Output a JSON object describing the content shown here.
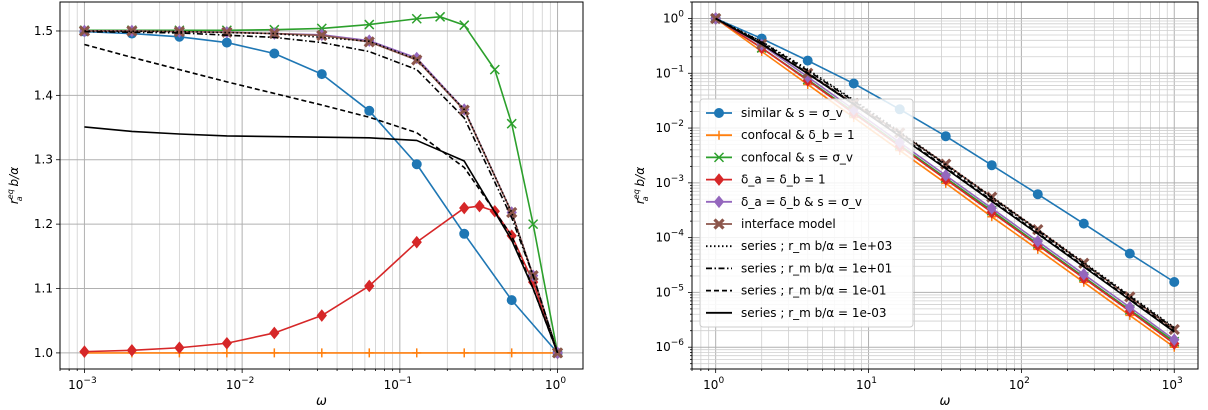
{
  "chart_data": [
    {
      "type": "line",
      "xscale": "log",
      "yscale": "linear",
      "xlim": [
        0.0007,
        1.45
      ],
      "ylim": [
        0.975,
        1.545
      ],
      "xlabel": "ω",
      "ylabel": "r_a^{eq} b/α",
      "grid": true,
      "xticks": [
        {
          "value": 0.001,
          "base": "10",
          "exp": "−3"
        },
        {
          "value": 0.01,
          "base": "10",
          "exp": "−2"
        },
        {
          "value": 0.1,
          "base": "10",
          "exp": "−1"
        },
        {
          "value": 1,
          "base": "10",
          "exp": "0"
        }
      ],
      "yticks": [
        "1.0",
        "1.1",
        "1.2",
        "1.3",
        "1.4",
        "1.5"
      ],
      "series": [
        {
          "key": "similar",
          "color": "#1f77b4",
          "style": "solid",
          "marker": "circle",
          "x": [
            0.001,
            0.002,
            0.004,
            0.008,
            0.016,
            0.032,
            0.064,
            0.128,
            0.256,
            0.512,
            1.0
          ],
          "y": [
            1.499,
            1.496,
            1.491,
            1.482,
            1.465,
            1.433,
            1.376,
            1.293,
            1.185,
            1.082,
            1.0
          ]
        },
        {
          "key": "confocal_b",
          "color": "#ff7f0e",
          "style": "solid",
          "marker": "plus",
          "x": [
            0.001,
            0.002,
            0.004,
            0.008,
            0.016,
            0.032,
            0.064,
            0.128,
            0.256,
            0.512,
            1.0
          ],
          "y": [
            1.0,
            1.0,
            1.0,
            1.0,
            1.0,
            1.0,
            1.0,
            1.0,
            1.0,
            1.0,
            1.0
          ]
        },
        {
          "key": "confocal_s",
          "color": "#2ca02c",
          "style": "solid",
          "marker": "x",
          "x": [
            0.001,
            0.002,
            0.004,
            0.008,
            0.016,
            0.032,
            0.064,
            0.128,
            0.18,
            0.256,
            0.4,
            0.512,
            0.7,
            1.0
          ],
          "y": [
            1.501,
            1.501,
            1.501,
            1.501,
            1.502,
            1.504,
            1.51,
            1.519,
            1.522,
            1.509,
            1.44,
            1.356,
            1.2,
            1.0
          ]
        },
        {
          "key": "delta_eq",
          "color": "#d62728",
          "style": "solid",
          "marker": "diamond",
          "x": [
            0.001,
            0.002,
            0.004,
            0.008,
            0.016,
            0.032,
            0.064,
            0.128,
            0.256,
            0.32,
            0.4,
            0.512,
            0.7,
            1.0
          ],
          "y": [
            1.002,
            1.004,
            1.008,
            1.015,
            1.031,
            1.058,
            1.104,
            1.172,
            1.225,
            1.228,
            1.22,
            1.182,
            1.11,
            1.0
          ]
        },
        {
          "key": "delta_s",
          "color": "#9467bd",
          "style": "solid",
          "marker": "diamond",
          "x": [
            0.001,
            0.002,
            0.004,
            0.008,
            0.016,
            0.032,
            0.064,
            0.128,
            0.256,
            0.512,
            0.7,
            1.0
          ],
          "y": [
            1.5,
            1.5,
            1.499,
            1.498,
            1.496,
            1.494,
            1.485,
            1.458,
            1.378,
            1.218,
            1.12,
            1.0
          ]
        },
        {
          "key": "interface",
          "color": "#8c564b",
          "style": "solid",
          "marker": "cross",
          "x": [
            0.001,
            0.002,
            0.004,
            0.008,
            0.016,
            0.032,
            0.064,
            0.128,
            0.256,
            0.512,
            0.7,
            1.0
          ],
          "y": [
            1.5,
            1.5,
            1.499,
            1.498,
            1.496,
            1.493,
            1.483,
            1.455,
            1.377,
            1.218,
            1.12,
            1.0
          ]
        },
        {
          "key": "s_e3",
          "color": "#000000",
          "style": "dotted",
          "marker": "none",
          "x": [
            0.001,
            0.004,
            0.016,
            0.064,
            0.128,
            0.256,
            0.512,
            0.7,
            1.0
          ],
          "y": [
            1.5,
            1.499,
            1.496,
            1.484,
            1.456,
            1.378,
            1.218,
            1.12,
            1.0
          ]
        },
        {
          "key": "s_e1",
          "color": "#000000",
          "style": "dashdot",
          "marker": "none",
          "x": [
            0.001,
            0.004,
            0.016,
            0.032,
            0.064,
            0.128,
            0.256,
            0.512,
            0.7,
            1.0
          ],
          "y": [
            1.499,
            1.497,
            1.49,
            1.482,
            1.468,
            1.44,
            1.365,
            1.21,
            1.12,
            1.0
          ]
        },
        {
          "key": "s_e-1",
          "color": "#000000",
          "style": "dashed",
          "marker": "none",
          "x": [
            0.001,
            0.002,
            0.004,
            0.008,
            0.016,
            0.032,
            0.064,
            0.128,
            0.256,
            0.512,
            0.7,
            1.0
          ],
          "y": [
            1.479,
            1.459,
            1.44,
            1.421,
            1.403,
            1.385,
            1.366,
            1.342,
            1.288,
            1.182,
            1.1,
            1.0
          ]
        },
        {
          "key": "s_e-3",
          "color": "#000000",
          "style": "solid",
          "marker": "none",
          "x": [
            0.001,
            0.002,
            0.004,
            0.008,
            0.016,
            0.032,
            0.064,
            0.128,
            0.256,
            0.512,
            0.7,
            1.0
          ],
          "y": [
            1.351,
            1.344,
            1.34,
            1.337,
            1.336,
            1.335,
            1.334,
            1.33,
            1.298,
            1.175,
            1.1,
            1.0
          ]
        }
      ]
    },
    {
      "type": "line",
      "xscale": "log",
      "yscale": "log",
      "xlim": [
        0.7,
        1430
      ],
      "ylim": [
        4e-07,
        2
      ],
      "xlabel": "ω",
      "ylabel": "r_a^{eq} b/α",
      "grid": true,
      "xticks": [
        {
          "value": 1,
          "base": "10",
          "exp": "0"
        },
        {
          "value": 10,
          "base": "10",
          "exp": "1"
        },
        {
          "value": 100,
          "base": "10",
          "exp": "2"
        },
        {
          "value": 1000,
          "base": "10",
          "exp": "3"
        }
      ],
      "yticks": [
        {
          "value": 1e-06,
          "base": "10",
          "exp": "−6"
        },
        {
          "value": 1e-05,
          "base": "10",
          "exp": "−5"
        },
        {
          "value": 0.0001,
          "base": "10",
          "exp": "−4"
        },
        {
          "value": 0.001,
          "base": "10",
          "exp": "−3"
        },
        {
          "value": 0.01,
          "base": "10",
          "exp": "−2"
        },
        {
          "value": 0.1,
          "base": "10",
          "exp": "−1"
        },
        {
          "value": 1,
          "base": "10",
          "exp": "0"
        }
      ],
      "legend": {
        "placement": "center-left",
        "entries": [
          {
            "key": "similar",
            "label": "similar & s = σ_v"
          },
          {
            "key": "confocal_b",
            "label": "confocal & δ_b = 1"
          },
          {
            "key": "confocal_s",
            "label": "confocal & s = σ_v"
          },
          {
            "key": "delta_eq",
            "label": "δ_a = δ_b = 1"
          },
          {
            "key": "delta_s",
            "label": "δ_a = δ_b & s = σ_v"
          },
          {
            "key": "interface",
            "label": "interface model"
          },
          {
            "key": "s_e3",
            "label": "series ; r_m b/α = 1e+03"
          },
          {
            "key": "s_e1",
            "label": "series ; r_m b/α = 1e+01"
          },
          {
            "key": "s_e-1",
            "label": "series ; r_m b/α = 1e-01"
          },
          {
            "key": "s_e-3",
            "label": "series ; r_m b/α = 1e-03"
          }
        ]
      },
      "series": [
        {
          "key": "similar",
          "color": "#1f77b4",
          "style": "solid",
          "marker": "circle",
          "x": [
            1,
            2,
            4,
            8,
            16,
            32,
            64,
            128,
            256,
            512,
            1000
          ],
          "y": [
            1,
            0.43,
            0.17,
            0.065,
            0.022,
            0.0071,
            0.0021,
            0.00062,
            0.00018,
            5.1e-05,
            1.55e-05
          ]
        },
        {
          "key": "confocal_b",
          "color": "#ff7f0e",
          "style": "solid",
          "marker": "plus",
          "x": [
            1,
            2,
            4,
            8,
            16,
            32,
            64,
            128,
            256,
            512,
            1000
          ],
          "y": [
            1,
            0.25,
            0.0625,
            0.0156,
            0.0039,
            0.00098,
            0.00024,
            6.1e-05,
            1.53e-05,
            3.8e-06,
            1e-06
          ]
        },
        {
          "key": "confocal_s",
          "color": "#2ca02c",
          "style": "solid",
          "marker": "x",
          "x": [
            1,
            2,
            4,
            8,
            16,
            32,
            64,
            128,
            256,
            512,
            1000
          ],
          "y": [
            1,
            0.29,
            0.077,
            0.0196,
            0.0049,
            0.00123,
            0.00031,
            7.7e-05,
            1.92e-05,
            4.8e-06,
            1.26e-06
          ]
        },
        {
          "key": "delta_eq",
          "color": "#d62728",
          "style": "solid",
          "marker": "diamond",
          "x": [
            1,
            2,
            4,
            8,
            16,
            32,
            64,
            128,
            256,
            512,
            1000
          ],
          "y": [
            1,
            0.29,
            0.074,
            0.0186,
            0.00465,
            0.00116,
            0.00029,
            7.27e-05,
            1.82e-05,
            4.54e-06,
            1.16e-06
          ]
        },
        {
          "key": "delta_s",
          "color": "#9467bd",
          "style": "solid",
          "marker": "diamond",
          "x": [
            1,
            2,
            4,
            8,
            16,
            32,
            64,
            128,
            256,
            512,
            1000
          ],
          "y": [
            1,
            0.33,
            0.086,
            0.0218,
            0.00547,
            0.00137,
            0.000343,
            8.57e-05,
            2.14e-05,
            5.36e-06,
            1.37e-06
          ]
        },
        {
          "key": "interface",
          "color": "#8c564b",
          "style": "solid",
          "marker": "cross",
          "x": [
            1,
            2,
            4,
            8,
            16,
            32,
            64,
            128,
            256,
            512,
            1000
          ],
          "y": [
            1,
            0.34,
            0.1,
            0.028,
            0.0082,
            0.0022,
            0.00055,
            0.00014,
            3.4e-05,
            8.3e-06,
            2.1e-06
          ]
        },
        {
          "key": "s_e3",
          "color": "#000000",
          "style": "dotted",
          "marker": "none",
          "x": [
            1,
            2,
            4,
            8,
            16,
            32,
            64,
            128,
            256,
            512,
            1000
          ],
          "y": [
            1,
            0.38,
            0.118,
            0.0325,
            0.0086,
            0.0022,
            0.00056,
            0.000141,
            3.53e-05,
            8.8e-06,
            2.3e-06
          ]
        },
        {
          "key": "s_e1",
          "color": "#000000",
          "style": "dashdot",
          "marker": "none",
          "x": [
            1,
            2,
            4,
            8,
            16,
            32,
            64,
            128,
            256,
            512,
            1000
          ],
          "y": [
            1,
            0.37,
            0.112,
            0.031,
            0.0082,
            0.0021,
            0.00053,
            0.000134,
            3.35e-05,
            8.4e-06,
            2.2e-06
          ]
        },
        {
          "key": "s_e-1",
          "color": "#000000",
          "style": "dashed",
          "marker": "none",
          "x": [
            1,
            2,
            4,
            8,
            16,
            32,
            64,
            128,
            256,
            512,
            1000
          ],
          "y": [
            1,
            0.35,
            0.102,
            0.028,
            0.0074,
            0.0019,
            0.00048,
            0.000122,
            3.05e-05,
            7.6e-06,
            2e-06
          ]
        },
        {
          "key": "s_e-3",
          "color": "#000000",
          "style": "solid",
          "marker": "none",
          "x": [
            1,
            2,
            4,
            8,
            16,
            32,
            64,
            128,
            256,
            512,
            1000
          ],
          "y": [
            1,
            0.34,
            0.098,
            0.027,
            0.0071,
            0.00182,
            0.00046,
            0.000117,
            2.93e-05,
            7.3e-06,
            1.9e-06
          ]
        }
      ]
    }
  ]
}
